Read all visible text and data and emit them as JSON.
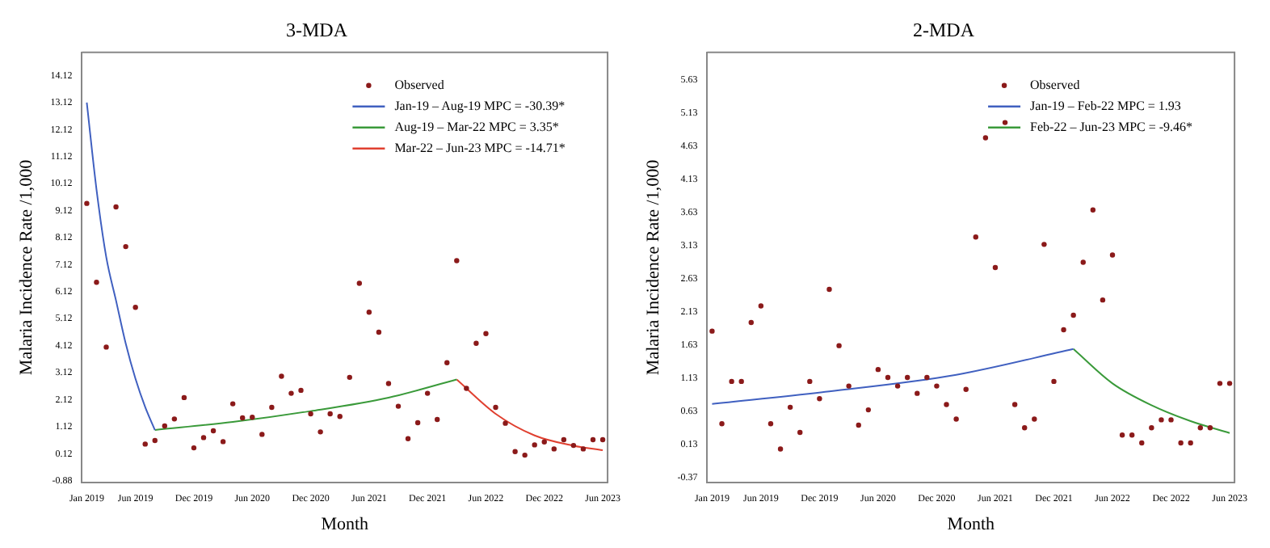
{
  "chart_data": [
    {
      "type": "scatter",
      "title": "3-MDA",
      "xlabel": "Month",
      "ylabel": "Malaria Incidence Rate /1,000",
      "legend": "top right",
      "categories": [
        "Jan 2019",
        null,
        null,
        null,
        null,
        "Jun 2019",
        null,
        null,
        null,
        null,
        null,
        "Dec 2019",
        null,
        null,
        null,
        null,
        null,
        "Jun 2020",
        null,
        null,
        null,
        null,
        null,
        "Dec 2020",
        null,
        null,
        null,
        null,
        null,
        "Jun 2021",
        null,
        null,
        null,
        null,
        null,
        "Dec 2021",
        null,
        null,
        null,
        null,
        null,
        "Jun 2022",
        null,
        null,
        null,
        null,
        null,
        "Dec 2022",
        null,
        null,
        null,
        null,
        null,
        "Jun 2023"
      ],
      "ylim": [
        -0.95,
        14.98
      ],
      "yticks": [
        -0.88,
        0.12,
        1.12,
        2.12,
        3.12,
        4.12,
        5.12,
        6.12,
        7.12,
        8.12,
        9.12,
        10.12,
        11.12,
        12.12,
        13.12,
        14.12
      ],
      "series": [
        {
          "name": "Observed",
          "type": "scatter",
          "marker": "circle",
          "color": "#8b1a1a",
          "values": [
            9.39,
            6.47,
            4.07,
            9.26,
            7.79,
            5.54,
            0.48,
            0.61,
            1.15,
            1.41,
            2.2,
            0.34,
            0.72,
            0.97,
            0.57,
            1.97,
            1.45,
            1.47,
            0.84,
            1.84,
            2.99,
            2.36,
            2.47,
            1.6,
            0.93,
            1.6,
            1.5,
            2.95,
            6.43,
            5.36,
            4.62,
            2.72,
            1.88,
            0.68,
            1.27,
            2.36,
            1.39,
            3.49,
            7.27,
            2.54,
            4.21,
            4.57,
            1.84,
            1.25,
            0.2,
            0.07,
            0.45,
            0.56,
            0.3,
            0.64,
            0.43,
            0.3,
            0.64,
            0.64
          ]
        },
        {
          "name": "Jan-19 – Aug-19 MPC = -30.39*",
          "type": "line",
          "color": "#4060c0",
          "values": [
            13.12,
            9.9,
            7.4,
            5.8,
            4.2,
            2.9,
            1.85,
            1.0,
            null,
            null,
            null,
            null,
            null,
            null,
            null,
            null,
            null,
            null,
            null,
            null,
            null,
            null,
            null,
            null,
            null,
            null,
            null,
            null,
            null,
            null,
            null,
            null,
            null,
            null,
            null,
            null,
            null,
            null,
            null,
            null,
            null,
            null,
            null,
            null,
            null,
            null,
            null,
            null,
            null,
            null,
            null,
            null,
            null,
            null
          ]
        },
        {
          "name": "Aug-19 – Mar-22 MPC = 3.35*",
          "type": "line",
          "color": "#3a9a3a",
          "values": [
            null,
            null,
            null,
            null,
            null,
            null,
            null,
            1.0,
            null,
            null,
            null,
            null,
            null,
            null,
            null,
            1.3,
            null,
            null,
            null,
            null,
            null,
            null,
            null,
            1.7,
            null,
            null,
            null,
            null,
            null,
            null,
            null,
            2.2,
            null,
            null,
            null,
            null,
            null,
            null,
            2.87,
            null,
            null,
            null,
            null,
            null,
            null,
            null,
            null,
            null,
            null,
            null,
            null,
            null,
            null,
            null
          ]
        },
        {
          "name": "Mar-22 – Jun-23 MPC = -14.71*",
          "type": "line",
          "color": "#e04030",
          "values": [
            null,
            null,
            null,
            null,
            null,
            null,
            null,
            null,
            null,
            null,
            null,
            null,
            null,
            null,
            null,
            null,
            null,
            null,
            null,
            null,
            null,
            null,
            null,
            null,
            null,
            null,
            null,
            null,
            null,
            null,
            null,
            null,
            null,
            null,
            null,
            null,
            null,
            null,
            2.87,
            null,
            null,
            null,
            1.6,
            null,
            null,
            null,
            0.8,
            null,
            null,
            null,
            0.42,
            null,
            null,
            0.25
          ]
        }
      ]
    },
    {
      "type": "scatter",
      "title": "2-MDA",
      "xlabel": "Month",
      "ylabel": "Malaria Incidence Rate /1,000",
      "legend": "top right",
      "categories": [
        "Jan 2019",
        null,
        null,
        null,
        null,
        "Jun 2019",
        null,
        null,
        null,
        null,
        null,
        "Dec 2019",
        null,
        null,
        null,
        null,
        null,
        "Jun 2020",
        null,
        null,
        null,
        null,
        null,
        "Dec 2020",
        null,
        null,
        null,
        null,
        null,
        "Jun 2021",
        null,
        null,
        null,
        null,
        null,
        "Dec 2021",
        null,
        null,
        null,
        null,
        null,
        "Jun 2022",
        null,
        null,
        null,
        null,
        null,
        "Dec 2022",
        null,
        null,
        null,
        null,
        null,
        "Jun 2023"
      ],
      "ylim": [
        -0.45,
        6.05
      ],
      "yticks": [
        -0.37,
        0.13,
        0.63,
        1.13,
        1.63,
        2.13,
        2.63,
        3.13,
        3.63,
        4.13,
        4.63,
        5.13,
        5.63
      ],
      "series": [
        {
          "name": "Observed",
          "type": "scatter",
          "marker": "circle",
          "color": "#8b1a1a",
          "values": [
            1.84,
            0.44,
            1.08,
            1.08,
            1.97,
            2.22,
            0.44,
            0.06,
            0.69,
            0.31,
            1.08,
            0.82,
            2.47,
            1.62,
            1.01,
            0.42,
            0.65,
            1.26,
            1.14,
            1.01,
            1.14,
            0.9,
            1.14,
            1.01,
            0.73,
            0.51,
            0.96,
            3.26,
            4.76,
            2.8,
            4.99,
            0.73,
            0.38,
            0.51,
            3.15,
            1.08,
            1.86,
            2.08,
            2.88,
            3.67,
            2.31,
            2.99,
            0.27,
            0.27,
            0.15,
            0.38,
            0.5,
            0.5,
            0.15,
            0.15,
            0.38,
            0.38,
            1.05,
            1.05
          ]
        },
        {
          "name": "Jan-19 – Feb-22 MPC = 1.93",
          "type": "line",
          "color": "#4060c0",
          "values": [
            0.74,
            null,
            null,
            null,
            null,
            null,
            null,
            null,
            null,
            null,
            null,
            null,
            0.93,
            null,
            null,
            null,
            null,
            null,
            null,
            null,
            null,
            null,
            null,
            null,
            null,
            1.18,
            null,
            null,
            null,
            null,
            null,
            null,
            null,
            null,
            null,
            null,
            null,
            1.57,
            null,
            null,
            null,
            null,
            null,
            null,
            null,
            null,
            null,
            null,
            null,
            null,
            null,
            null,
            null,
            null
          ]
        },
        {
          "name": "Feb-22 – Jun-23 MPC = -9.46*",
          "type": "line",
          "color": "#3a9a3a",
          "values": [
            null,
            null,
            null,
            null,
            null,
            null,
            null,
            null,
            null,
            null,
            null,
            null,
            null,
            null,
            null,
            null,
            null,
            null,
            null,
            null,
            null,
            null,
            null,
            null,
            null,
            null,
            null,
            null,
            null,
            null,
            null,
            null,
            null,
            null,
            null,
            null,
            null,
            1.57,
            null,
            null,
            null,
            1.05,
            null,
            null,
            null,
            0.72,
            null,
            null,
            null,
            0.48,
            null,
            null,
            null,
            0.3
          ]
        }
      ]
    }
  ]
}
